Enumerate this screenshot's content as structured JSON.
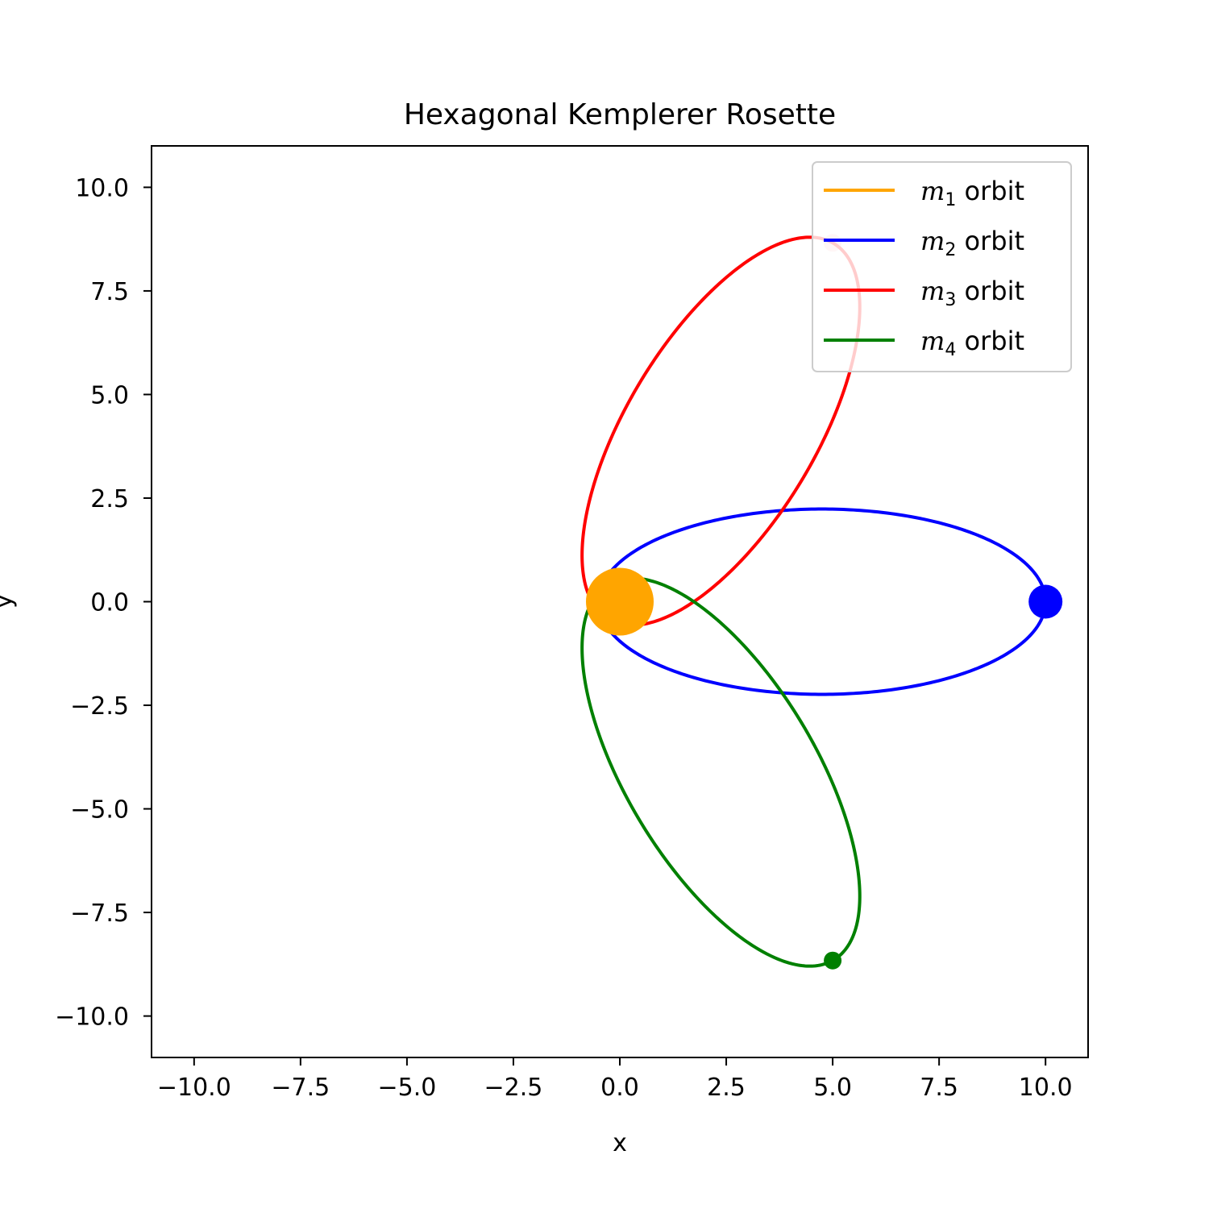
{
  "chart_data": {
    "type": "line",
    "title": "Hexagonal Kemplerer Rosette",
    "xlabel": "x",
    "ylabel": "y",
    "xlim": [
      -11,
      11
    ],
    "ylim": [
      -11,
      11
    ],
    "xticks": [
      -10.0,
      -7.5,
      -5.0,
      -2.5,
      0.0,
      2.5,
      5.0,
      7.5,
      10.0
    ],
    "yticks": [
      -10.0,
      -7.5,
      -5.0,
      -2.5,
      0.0,
      2.5,
      5.0,
      7.5,
      10.0
    ],
    "xtick_labels": [
      "−10.0",
      "−7.5",
      "−5.0",
      "−2.5",
      "0.0",
      "2.5",
      "5.0",
      "7.5",
      "10.0"
    ],
    "ytick_labels": [
      "−10.0",
      "−7.5",
      "−5.0",
      "−2.5",
      "0.0",
      "2.5",
      "5.0",
      "7.5",
      "10.0"
    ],
    "grid": false,
    "legend_position": "top-right",
    "series": [
      {
        "name": "m1 orbit",
        "legend_main": "m",
        "legend_sub": "1",
        "legend_suffix": " orbit",
        "color": "#ffa500",
        "orbit": null,
        "body": {
          "x": 0.0,
          "y": 0.0,
          "radius_hint": "large"
        }
      },
      {
        "name": "m2 orbit",
        "legend_main": "m",
        "legend_sub": "2",
        "legend_suffix": " orbit",
        "color": "#0000ff",
        "orbit": {
          "focus": [
            0.0,
            0.0
          ],
          "periapsis": 0.5,
          "apoapsis": 10.0,
          "angle_deg": 0
        },
        "body": {
          "x": 10.0,
          "y": 0.0,
          "radius_hint": "medium"
        }
      },
      {
        "name": "m3 orbit",
        "legend_main": "m",
        "legend_sub": "3",
        "legend_suffix": " orbit",
        "color": "#ff0000",
        "orbit": {
          "focus": [
            0.0,
            0.0
          ],
          "periapsis": 0.5,
          "apoapsis": 10.0,
          "angle_deg": 60
        },
        "body": {
          "x": 5.0,
          "y": 8.66,
          "radius_hint": "small",
          "faded": true
        }
      },
      {
        "name": "m4 orbit",
        "legend_main": "m",
        "legend_sub": "4",
        "legend_suffix": " orbit",
        "color": "#008000",
        "orbit": {
          "focus": [
            0.0,
            0.0
          ],
          "periapsis": 0.5,
          "apoapsis": 10.0,
          "angle_deg": -60
        },
        "body": {
          "x": 5.0,
          "y": -8.66,
          "radius_hint": "small"
        }
      }
    ]
  }
}
